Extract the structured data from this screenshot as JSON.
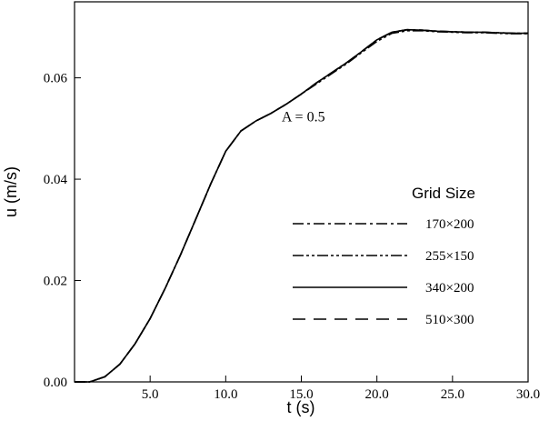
{
  "chart_data": {
    "type": "line",
    "xlabel": "t (s)",
    "ylabel": "u (m/s)",
    "xlim": [
      0,
      30
    ],
    "ylim": [
      0,
      0.075
    ],
    "xticks": [
      5,
      10,
      15,
      20,
      25,
      30
    ],
    "xtick_labels": [
      "5.0",
      "10.0",
      "15.0",
      "20.0",
      "25.0",
      "30.0"
    ],
    "yticks": [
      0,
      0.02,
      0.04,
      0.06
    ],
    "ytick_labels": [
      "0.00",
      "0.02",
      "0.04",
      "0.06"
    ],
    "grid": false,
    "legend_position": "right",
    "annotation": {
      "text": "A = 0.5",
      "x": 13.7,
      "y": 0.0525
    },
    "legend_title": "Grid Size",
    "x": [
      0,
      1,
      2,
      3,
      4,
      5,
      6,
      7,
      8,
      9,
      10,
      11,
      12,
      13,
      14,
      15,
      16,
      17,
      18,
      19,
      20,
      21,
      22,
      23,
      24,
      25,
      26,
      27,
      28,
      29,
      30
    ],
    "series": [
      {
        "name": "170×200",
        "style": "dashdot",
        "values": [
          0.0,
          0.0,
          0.001,
          0.0035,
          0.0075,
          0.0125,
          0.0185,
          0.025,
          0.032,
          0.039,
          0.0455,
          0.0495,
          0.0515,
          0.053,
          0.0548,
          0.0568,
          0.059,
          0.061,
          0.063,
          0.0652,
          0.0675,
          0.069,
          0.0695,
          0.0694,
          0.0692,
          0.0691,
          0.069,
          0.069,
          0.0689,
          0.0688,
          0.0688
        ]
      },
      {
        "name": "255×150",
        "style": "dashdotdot",
        "values": [
          0.0,
          0.0,
          0.001,
          0.0035,
          0.0075,
          0.0125,
          0.0185,
          0.025,
          0.032,
          0.039,
          0.0455,
          0.0495,
          0.0515,
          0.053,
          0.0548,
          0.0568,
          0.0588,
          0.0608,
          0.0628,
          0.065,
          0.0672,
          0.0688,
          0.0693,
          0.0693,
          0.0691,
          0.069,
          0.0689,
          0.0689,
          0.0688,
          0.0687,
          0.0687
        ]
      },
      {
        "name": "340×200",
        "style": "solid",
        "values": [
          0.0,
          0.0,
          0.001,
          0.0035,
          0.0075,
          0.0125,
          0.0185,
          0.025,
          0.032,
          0.039,
          0.0455,
          0.0495,
          0.0515,
          0.053,
          0.0548,
          0.0568,
          0.059,
          0.061,
          0.063,
          0.0652,
          0.0675,
          0.069,
          0.0695,
          0.0694,
          0.0692,
          0.0691,
          0.069,
          0.069,
          0.0689,
          0.0688,
          0.0688
        ]
      },
      {
        "name": "510×300",
        "style": "dashed",
        "values": [
          0.0,
          0.0,
          0.001,
          0.0035,
          0.0075,
          0.0125,
          0.0185,
          0.025,
          0.032,
          0.039,
          0.0455,
          0.0495,
          0.0515,
          0.053,
          0.0548,
          0.0568,
          0.059,
          0.061,
          0.063,
          0.0652,
          0.0675,
          0.069,
          0.0695,
          0.0694,
          0.0692,
          0.0691,
          0.069,
          0.069,
          0.0689,
          0.0688,
          0.0688
        ]
      }
    ]
  }
}
